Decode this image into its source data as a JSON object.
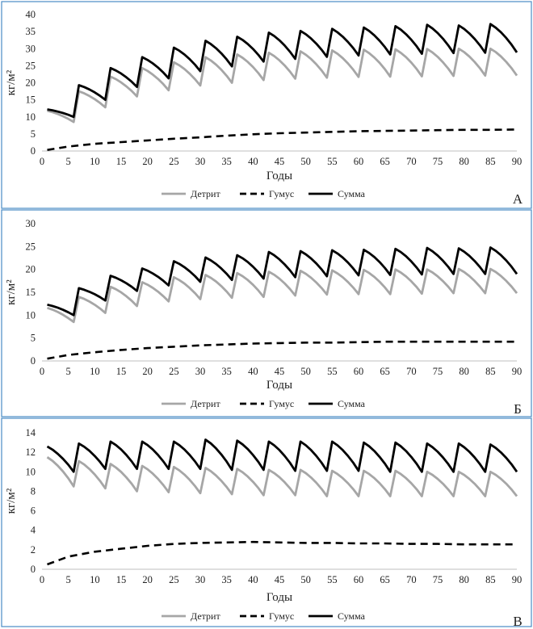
{
  "chart_data": [
    {
      "type": "line",
      "panel_label": "А",
      "xlabel": "Годы",
      "ylabel": "кг/м²",
      "xlim": [
        0,
        90
      ],
      "ylim": [
        0,
        40
      ],
      "xticks": [
        0,
        5,
        10,
        15,
        20,
        25,
        30,
        35,
        40,
        45,
        50,
        55,
        60,
        65,
        70,
        75,
        80,
        85,
        90
      ],
      "yticks": [
        0,
        5,
        10,
        15,
        20,
        25,
        30,
        35,
        40
      ],
      "grid": false,
      "legend_position": "bottom",
      "series": [
        {
          "name": "Детрит",
          "style": "solid",
          "color": "#a6a6a6",
          "cycle_peaks": [
            11.8,
            17.5,
            21.8,
            24.3,
            26.0,
            27.5,
            28.3,
            28.8,
            29.2,
            29.5,
            29.7,
            29.8,
            29.9,
            30.0,
            30.0
          ],
          "cycle_troughs": [
            8.5,
            12.8,
            16.0,
            17.8,
            19.2,
            20.0,
            20.8,
            21.2,
            21.5,
            21.7,
            21.8,
            21.9,
            22.0,
            22.1,
            22.1
          ]
        },
        {
          "name": "Гумус",
          "style": "dashed",
          "color": "#000000",
          "x": [
            1,
            5,
            10,
            15,
            20,
            25,
            30,
            35,
            40,
            45,
            50,
            55,
            60,
            65,
            70,
            75,
            80,
            85,
            90
          ],
          "y": [
            0.3,
            1.3,
            2.1,
            2.6,
            3.1,
            3.6,
            4.0,
            4.5,
            4.9,
            5.2,
            5.4,
            5.6,
            5.8,
            5.9,
            6.0,
            6.1,
            6.2,
            6.2,
            6.3
          ]
        },
        {
          "name": "Сумма",
          "style": "solid",
          "color": "#000000",
          "cycle_peaks": [
            12.2,
            19.3,
            24.3,
            27.5,
            30.3,
            32.3,
            33.5,
            34.7,
            35.2,
            35.8,
            36.2,
            36.6,
            37.0,
            36.8,
            37.2
          ],
          "cycle_troughs": [
            10.0,
            15.0,
            18.8,
            21.3,
            23.4,
            24.8,
            26.2,
            27.0,
            27.6,
            28.0,
            28.3,
            28.5,
            28.7,
            28.8,
            28.9
          ]
        }
      ]
    },
    {
      "type": "line",
      "panel_label": "Б",
      "xlabel": "Годы",
      "ylabel": "кг/м²",
      "xlim": [
        0,
        90
      ],
      "ylim": [
        0,
        30
      ],
      "xticks": [
        0,
        5,
        10,
        15,
        20,
        25,
        30,
        35,
        40,
        45,
        50,
        55,
        60,
        65,
        70,
        75,
        80,
        85,
        90
      ],
      "yticks": [
        0,
        5,
        10,
        15,
        20,
        25,
        30
      ],
      "grid": false,
      "legend_position": "bottom",
      "series": [
        {
          "name": "Детрит",
          "style": "solid",
          "color": "#a6a6a6",
          "cycle_peaks": [
            11.6,
            14.0,
            16.2,
            17.2,
            18.3,
            18.8,
            19.2,
            19.5,
            19.7,
            19.8,
            19.9,
            20.0,
            20.0,
            20.1,
            20.1
          ],
          "cycle_troughs": [
            8.5,
            10.5,
            12.0,
            13.0,
            13.5,
            13.8,
            14.0,
            14.3,
            14.5,
            14.6,
            14.6,
            14.7,
            14.8,
            14.8,
            14.8
          ]
        },
        {
          "name": "Гумус",
          "style": "dashed",
          "color": "#000000",
          "x": [
            1,
            5,
            10,
            15,
            20,
            25,
            30,
            35,
            40,
            45,
            50,
            55,
            60,
            65,
            70,
            75,
            80,
            85,
            90
          ],
          "y": [
            0.5,
            1.3,
            1.9,
            2.4,
            2.8,
            3.1,
            3.4,
            3.6,
            3.8,
            3.9,
            4.0,
            4.0,
            4.1,
            4.2,
            4.2,
            4.2,
            4.2,
            4.2,
            4.2
          ]
        },
        {
          "name": "Сумма",
          "style": "solid",
          "color": "#000000",
          "cycle_peaks": [
            12.3,
            15.9,
            18.6,
            20.2,
            21.8,
            22.6,
            23.1,
            23.8,
            24.0,
            24.2,
            24.3,
            24.5,
            24.7,
            24.6,
            24.8
          ],
          "cycle_troughs": [
            10.0,
            13.2,
            15.3,
            16.5,
            17.3,
            17.7,
            18.0,
            18.3,
            18.5,
            18.7,
            18.8,
            18.9,
            19.0,
            19.0,
            19.0
          ]
        }
      ]
    },
    {
      "type": "line",
      "panel_label": "В",
      "xlabel": "Годы",
      "ylabel": "кг/м²",
      "xlim": [
        0,
        90
      ],
      "ylim": [
        0,
        14
      ],
      "xticks": [
        0,
        5,
        10,
        15,
        20,
        25,
        30,
        35,
        40,
        45,
        50,
        55,
        60,
        65,
        70,
        75,
        80,
        85,
        90
      ],
      "yticks": [
        0,
        2,
        4,
        6,
        8,
        10,
        12,
        14
      ],
      "grid": false,
      "legend_position": "bottom",
      "series": [
        {
          "name": "Детрит",
          "style": "solid",
          "color": "#a6a6a6",
          "cycle_peaks": [
            11.5,
            11.1,
            10.8,
            10.6,
            10.5,
            10.4,
            10.3,
            10.2,
            10.2,
            10.1,
            10.1,
            10.1,
            10.0,
            10.0,
            10.0
          ],
          "cycle_troughs": [
            8.5,
            8.3,
            8.0,
            7.9,
            7.8,
            7.7,
            7.6,
            7.6,
            7.5,
            7.5,
            7.5,
            7.5,
            7.5,
            7.5,
            7.5
          ]
        },
        {
          "name": "Гумус",
          "style": "dashed",
          "color": "#000000",
          "x": [
            1,
            5,
            10,
            15,
            20,
            25,
            30,
            35,
            40,
            45,
            50,
            55,
            60,
            65,
            70,
            75,
            80,
            85,
            90
          ],
          "y": [
            0.5,
            1.3,
            1.8,
            2.1,
            2.4,
            2.6,
            2.7,
            2.75,
            2.8,
            2.75,
            2.7,
            2.7,
            2.65,
            2.65,
            2.6,
            2.6,
            2.55,
            2.55,
            2.55
          ]
        },
        {
          "name": "Сумма",
          "style": "solid",
          "color": "#000000",
          "cycle_peaks": [
            12.6,
            12.9,
            13.1,
            13.1,
            13.1,
            13.3,
            13.2,
            13.1,
            13.1,
            13.1,
            13.0,
            13.0,
            12.9,
            12.9,
            12.8
          ],
          "cycle_troughs": [
            10.0,
            10.3,
            10.3,
            10.3,
            10.3,
            10.2,
            10.2,
            10.1,
            10.1,
            10.1,
            10.0,
            10.0,
            10.0,
            10.0,
            10.0
          ]
        }
      ]
    }
  ]
}
